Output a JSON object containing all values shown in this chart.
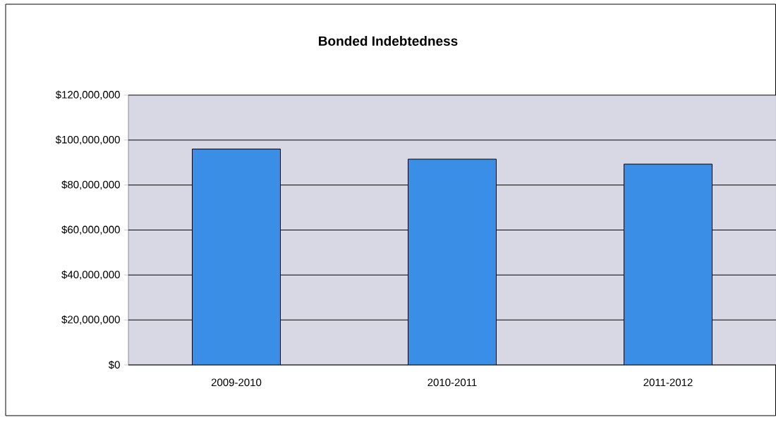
{
  "chart_data": {
    "type": "bar",
    "title": "Bonded Indebtedness",
    "categories": [
      "2009-2010",
      "2010-2011",
      "2011-2012"
    ],
    "values": [
      96000000,
      91500000,
      89300000
    ],
    "color": "#3a8ee6",
    "ylim": [
      0,
      120000000
    ],
    "yticks": [
      {
        "value": 0,
        "label": "$0"
      },
      {
        "value": 20000000,
        "label": "$20,000,000"
      },
      {
        "value": 40000000,
        "label": "$40,000,000"
      },
      {
        "value": 60000000,
        "label": "$60,000,000"
      },
      {
        "value": 80000000,
        "label": "$80,000,000"
      },
      {
        "value": 100000000,
        "label": "$100,000,000"
      },
      {
        "value": 120000000,
        "label": "$120,000,000"
      }
    ],
    "grid": "y"
  }
}
